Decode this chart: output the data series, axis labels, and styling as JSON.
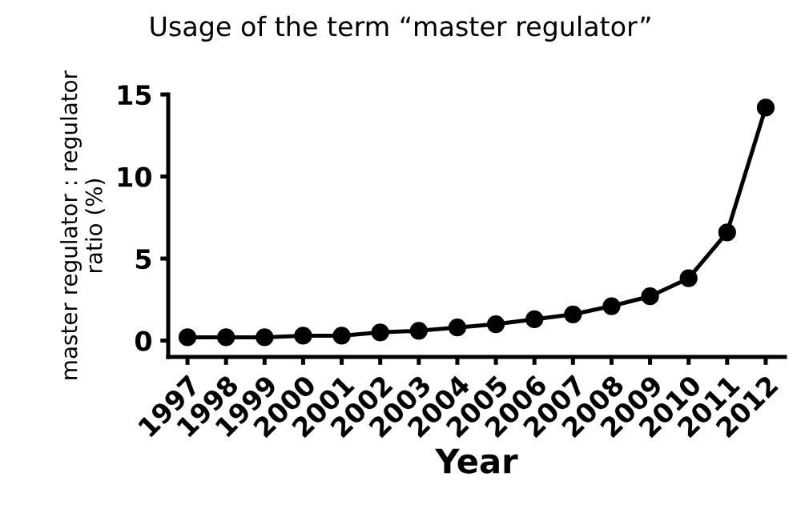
{
  "chart_data": {
    "type": "line",
    "title": "Usage of the term “master regulator”",
    "xlabel": "Year",
    "ylabel": "master regulator : regulator\nratio (%)",
    "categories": [
      "1997",
      "1998",
      "1999",
      "2000",
      "2001",
      "2002",
      "2003",
      "2004",
      "2005",
      "2006",
      "2007",
      "2008",
      "2009",
      "2010",
      "2011",
      "2012"
    ],
    "series": [
      {
        "color": "#000000",
        "values": [
          0.2,
          0.2,
          0.2,
          0.3,
          0.3,
          0.5,
          0.6,
          0.8,
          1.0,
          1.3,
          1.6,
          2.1,
          2.7,
          3.8,
          6.6,
          14.2
        ]
      }
    ],
    "ylim": [
      -1,
      15
    ],
    "yticks": [
      0,
      5,
      10,
      15
    ],
    "marker": "circle",
    "line_style": "solid",
    "grid": false,
    "legend": false
  }
}
